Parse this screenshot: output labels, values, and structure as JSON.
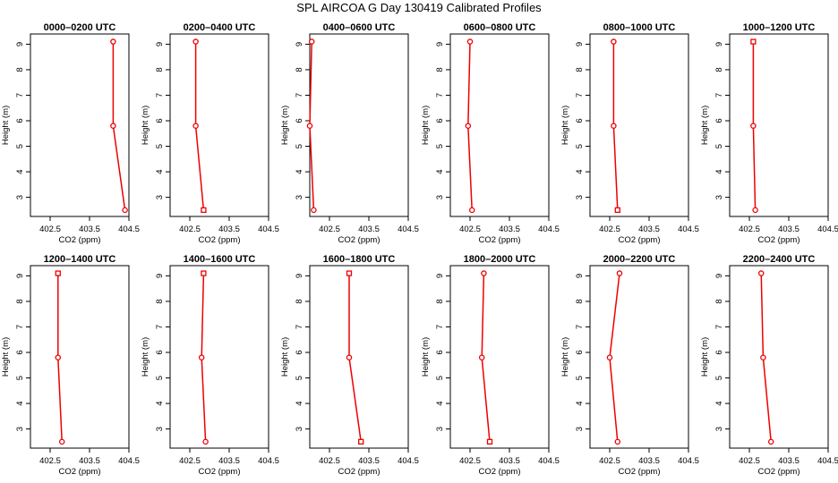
{
  "chart_data": {
    "type": "line",
    "title": "SPL AIRCOA G  Day 130419  Calibrated Profiles",
    "xlabel": "CO2 (ppm)",
    "ylabel": "Height (m)",
    "xlim": [
      402.0,
      404.5
    ],
    "ylim": [
      2.25,
      9.4
    ],
    "xticks": [
      "402.5",
      "403.5",
      "404.5"
    ],
    "xtick_values": [
      402.5,
      403.5,
      404.5
    ],
    "yticks": [
      "3",
      "4",
      "5",
      "6",
      "7",
      "8",
      "9"
    ],
    "ytick_values": [
      3,
      4,
      5,
      6,
      7,
      8,
      9
    ],
    "line_color": "#ee0000",
    "panels": [
      {
        "title": "0000–0200 UTC",
        "heights": [
          9.1,
          5.8,
          2.5
        ],
        "co2": [
          404.1,
          404.1,
          404.4
        ],
        "markers": [
          "circle",
          "circle",
          "circle"
        ]
      },
      {
        "title": "0200–0400 UTC",
        "heights": [
          9.1,
          5.8,
          2.5
        ],
        "co2": [
          402.65,
          402.65,
          402.85
        ],
        "markers": [
          "circle",
          "circle",
          "square"
        ]
      },
      {
        "title": "0400–0600 UTC",
        "heights": [
          9.1,
          5.8,
          2.5
        ],
        "co2": [
          402.05,
          402.0,
          402.1
        ],
        "markers": [
          "circle",
          "circle",
          "circle"
        ]
      },
      {
        "title": "0600–0800 UTC",
        "heights": [
          9.1,
          5.8,
          2.5
        ],
        "co2": [
          402.5,
          402.45,
          402.55
        ],
        "markers": [
          "circle",
          "circle",
          "circle"
        ]
      },
      {
        "title": "0800–1000 UTC",
        "heights": [
          9.1,
          5.8,
          2.5
        ],
        "co2": [
          402.6,
          402.6,
          402.7
        ],
        "markers": [
          "circle",
          "circle",
          "square"
        ]
      },
      {
        "title": "1000–1200 UTC",
        "heights": [
          9.1,
          5.8,
          2.5
        ],
        "co2": [
          402.6,
          402.6,
          402.65
        ],
        "markers": [
          "square",
          "circle",
          "circle"
        ]
      },
      {
        "title": "1200–1400 UTC",
        "heights": [
          9.1,
          5.8,
          2.5
        ],
        "co2": [
          402.7,
          402.7,
          402.8
        ],
        "markers": [
          "square",
          "circle",
          "circle"
        ]
      },
      {
        "title": "1400–1600 UTC",
        "heights": [
          9.1,
          5.8,
          2.5
        ],
        "co2": [
          402.85,
          402.8,
          402.9
        ],
        "markers": [
          "square",
          "circle",
          "circle"
        ]
      },
      {
        "title": "1600–1800 UTC",
        "heights": [
          9.1,
          5.8,
          2.5
        ],
        "co2": [
          403.0,
          403.0,
          403.3
        ],
        "markers": [
          "square",
          "circle",
          "square"
        ]
      },
      {
        "title": "1800–2000 UTC",
        "heights": [
          9.1,
          5.8,
          2.5
        ],
        "co2": [
          402.85,
          402.8,
          403.0
        ],
        "markers": [
          "circle",
          "circle",
          "square"
        ]
      },
      {
        "title": "2000–2200 UTC",
        "heights": [
          9.1,
          5.8,
          2.5
        ],
        "co2": [
          402.75,
          402.5,
          402.7
        ],
        "markers": [
          "circle",
          "circle",
          "circle"
        ]
      },
      {
        "title": "2200–2400 UTC",
        "heights": [
          9.1,
          5.8,
          2.5
        ],
        "co2": [
          402.8,
          402.85,
          403.05
        ],
        "markers": [
          "circle",
          "circle",
          "circle"
        ]
      }
    ]
  }
}
